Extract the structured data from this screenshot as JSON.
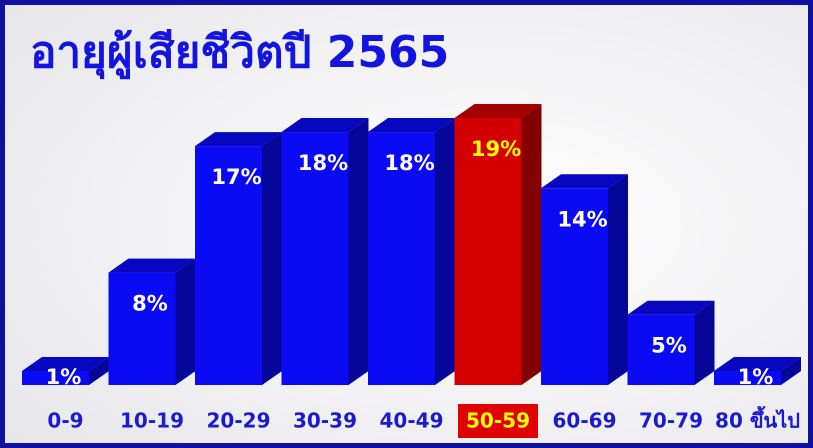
{
  "chart_data": {
    "type": "bar3d",
    "title": "อายุผู้เสียชีวิตปี 2565",
    "categories": [
      "0-9",
      "10-19",
      "20-29",
      "30-39",
      "40-49",
      "50-59",
      "60-69",
      "70-79",
      "80 ขึ้นไป"
    ],
    "values": [
      1,
      8,
      17,
      18,
      18,
      19,
      14,
      5,
      1
    ],
    "value_labels": [
      "1%",
      "8%",
      "17%",
      "18%",
      "18%",
      "19%",
      "14%",
      "5%",
      "1%"
    ],
    "colors": [
      "#0a0af5",
      "#0a0af5",
      "#0a0af5",
      "#0a0af5",
      "#0a0af5",
      "#d40000",
      "#0a0af5",
      "#0a0af5",
      "#0a0af5"
    ],
    "value_label_colors": [
      "#ffffff",
      "#ffffff",
      "#ffffff",
      "#ffffff",
      "#ffffff",
      "#ffff00",
      "#ffffff",
      "#ffffff",
      "#ffffff"
    ],
    "category_label_colors": [
      "#1a1ad0",
      "#1a1ad0",
      "#1a1ad0",
      "#1a1ad0",
      "#1a1ad0",
      "#ffff00",
      "#1a1ad0",
      "#1a1ad0",
      "#1a1ad0"
    ],
    "category_backgrounds": [
      null,
      null,
      null,
      null,
      null,
      "#e00000",
      null,
      null,
      null
    ]
  }
}
